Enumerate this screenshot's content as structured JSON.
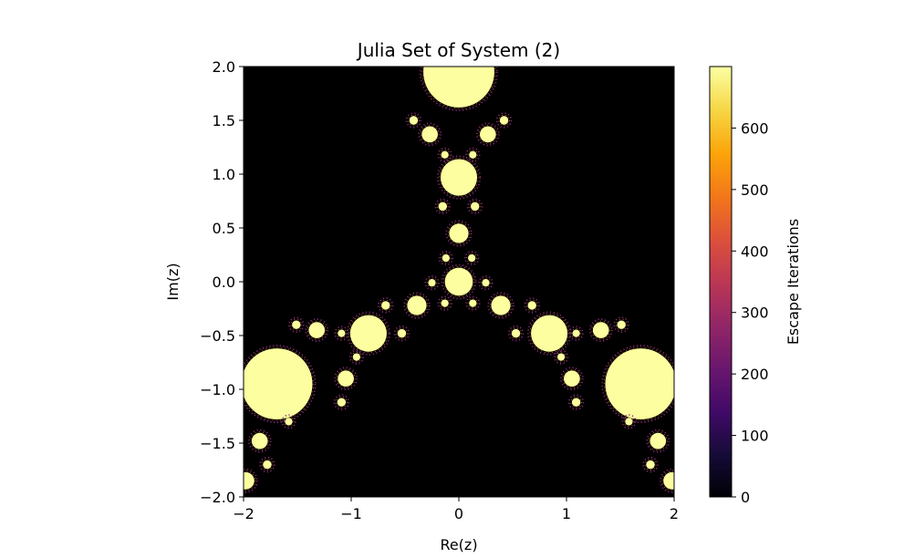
{
  "chart_data": {
    "type": "heatmap",
    "title": "Julia Set of System (2)",
    "xlabel": "Re(z)",
    "ylabel": "Im(z)",
    "xlim": [
      -2,
      2
    ],
    "ylim": [
      -2,
      2
    ],
    "x_ticks": [
      -2,
      -1,
      0,
      1,
      2
    ],
    "x_tick_labels": [
      "−2",
      "−1",
      "0",
      "1",
      "2"
    ],
    "y_ticks": [
      -2.0,
      -1.5,
      -1.0,
      -0.5,
      0.0,
      0.5,
      1.0,
      1.5,
      2.0
    ],
    "y_tick_labels": [
      "−2.0",
      "−1.5",
      "−1.0",
      "−0.5",
      "0.0",
      "0.5",
      "1.0",
      "1.5",
      "2.0"
    ],
    "grid": false,
    "colormap": "inferno",
    "colorbar": {
      "label": "Escape Iterations",
      "range": [
        0,
        700
      ],
      "ticks": [
        0,
        100,
        200,
        300,
        400,
        500,
        600
      ],
      "tick_labels": [
        "0",
        "100",
        "200",
        "300",
        "400",
        "500",
        "600"
      ]
    },
    "background_value": 0,
    "filled_regions": [
      {
        "cx": 0.0,
        "cy": 1.95,
        "r": 0.33,
        "value": 700
      },
      {
        "cx": 0.0,
        "cy": 0.97,
        "r": 0.17,
        "value": 700
      },
      {
        "cx": 0.0,
        "cy": 0.45,
        "r": 0.09,
        "value": 700
      },
      {
        "cx": 0.0,
        "cy": 0.0,
        "r": 0.13,
        "value": 700
      },
      {
        "cx": -0.27,
        "cy": 1.37,
        "r": 0.075,
        "value": 700
      },
      {
        "cx": 0.27,
        "cy": 1.37,
        "r": 0.075,
        "value": 700
      },
      {
        "cx": -0.42,
        "cy": 1.5,
        "r": 0.04,
        "value": 700
      },
      {
        "cx": 0.42,
        "cy": 1.5,
        "r": 0.04,
        "value": 700
      },
      {
        "cx": -0.13,
        "cy": 1.18,
        "r": 0.035,
        "value": 700
      },
      {
        "cx": 0.13,
        "cy": 1.18,
        "r": 0.035,
        "value": 700
      },
      {
        "cx": -0.15,
        "cy": 0.7,
        "r": 0.04,
        "value": 700
      },
      {
        "cx": 0.15,
        "cy": 0.7,
        "r": 0.04,
        "value": 700
      },
      {
        "cx": -0.12,
        "cy": 0.22,
        "r": 0.035,
        "value": 700
      },
      {
        "cx": 0.12,
        "cy": 0.22,
        "r": 0.035,
        "value": 700
      },
      {
        "cx": -1.69,
        "cy": -0.95,
        "r": 0.33,
        "value": 700
      },
      {
        "cx": -0.84,
        "cy": -0.48,
        "r": 0.17,
        "value": 700
      },
      {
        "cx": -0.39,
        "cy": -0.22,
        "r": 0.09,
        "value": 700
      },
      {
        "cx": -1.32,
        "cy": -0.45,
        "r": 0.075,
        "value": 700
      },
      {
        "cx": -1.05,
        "cy": -0.9,
        "r": 0.075,
        "value": 700
      },
      {
        "cx": -1.51,
        "cy": -0.4,
        "r": 0.04,
        "value": 700
      },
      {
        "cx": -1.09,
        "cy": -1.12,
        "r": 0.04,
        "value": 700
      },
      {
        "cx": -1.09,
        "cy": -0.48,
        "r": 0.035,
        "value": 700
      },
      {
        "cx": -0.95,
        "cy": -0.7,
        "r": 0.035,
        "value": 700
      },
      {
        "cx": -0.68,
        "cy": -0.22,
        "r": 0.04,
        "value": 700
      },
      {
        "cx": -0.53,
        "cy": -0.48,
        "r": 0.04,
        "value": 700
      },
      {
        "cx": -0.25,
        "cy": -0.01,
        "r": 0.035,
        "value": 700
      },
      {
        "cx": -0.13,
        "cy": -0.2,
        "r": 0.035,
        "value": 700
      },
      {
        "cx": -1.85,
        "cy": -1.48,
        "r": 0.075,
        "value": 700
      },
      {
        "cx": -1.98,
        "cy": -1.85,
        "r": 0.08,
        "value": 700
      },
      {
        "cx": -1.78,
        "cy": -1.7,
        "r": 0.04,
        "value": 700
      },
      {
        "cx": -1.58,
        "cy": -1.3,
        "r": 0.035,
        "value": 700
      },
      {
        "cx": 1.69,
        "cy": -0.95,
        "r": 0.33,
        "value": 700
      },
      {
        "cx": 0.84,
        "cy": -0.48,
        "r": 0.17,
        "value": 700
      },
      {
        "cx": 0.39,
        "cy": -0.22,
        "r": 0.09,
        "value": 700
      },
      {
        "cx": 1.32,
        "cy": -0.45,
        "r": 0.075,
        "value": 700
      },
      {
        "cx": 1.05,
        "cy": -0.9,
        "r": 0.075,
        "value": 700
      },
      {
        "cx": 1.51,
        "cy": -0.4,
        "r": 0.04,
        "value": 700
      },
      {
        "cx": 1.09,
        "cy": -1.12,
        "r": 0.04,
        "value": 700
      },
      {
        "cx": 1.09,
        "cy": -0.48,
        "r": 0.035,
        "value": 700
      },
      {
        "cx": 0.95,
        "cy": -0.7,
        "r": 0.035,
        "value": 700
      },
      {
        "cx": 0.68,
        "cy": -0.22,
        "r": 0.04,
        "value": 700
      },
      {
        "cx": 0.53,
        "cy": -0.48,
        "r": 0.04,
        "value": 700
      },
      {
        "cx": 0.25,
        "cy": -0.01,
        "r": 0.035,
        "value": 700
      },
      {
        "cx": 0.13,
        "cy": -0.2,
        "r": 0.035,
        "value": 700
      },
      {
        "cx": 1.85,
        "cy": -1.48,
        "r": 0.075,
        "value": 700
      },
      {
        "cx": 1.98,
        "cy": -1.85,
        "r": 0.08,
        "value": 700
      },
      {
        "cx": 1.78,
        "cy": -1.7,
        "r": 0.04,
        "value": 700
      },
      {
        "cx": 1.58,
        "cy": -1.3,
        "r": 0.035,
        "value": 700
      }
    ]
  }
}
